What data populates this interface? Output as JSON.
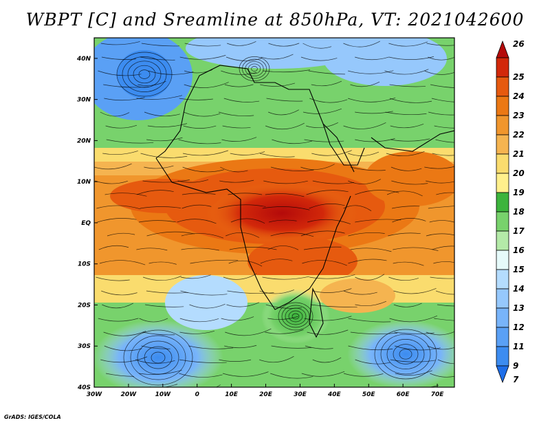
{
  "title": "WBPT [C] and Sreamline at 850hPa, VT: 2021042600",
  "footer": "GrADS: IGES/COLA",
  "map": {
    "lon_range": [
      -30,
      75
    ],
    "lat_range": [
      -40,
      45
    ],
    "lon_ticks": [
      "30W",
      "20W",
      "10W",
      "0",
      "10E",
      "20E",
      "30E",
      "40E",
      "50E",
      "60E",
      "70E"
    ],
    "lat_ticks": [
      "40N",
      "30N",
      "20N",
      "10N",
      "EQ",
      "10S",
      "20S",
      "30S",
      "40S"
    ]
  },
  "colorbar": {
    "levels": [
      "7",
      "9",
      "11",
      "12",
      "13",
      "14",
      "15",
      "16",
      "17",
      "18",
      "19",
      "20",
      "21",
      "22",
      "23",
      "24",
      "25",
      "26"
    ],
    "colors": [
      "#1e6ee8",
      "#3c8cf0",
      "#5aa0f5",
      "#78b4fa",
      "#96c8fc",
      "#b4dcfe",
      "#e6fafa",
      "#b4eaa8",
      "#78d26c",
      "#3cb43c",
      "#fff08c",
      "#fadc6e",
      "#f5b450",
      "#f0962d",
      "#eb7814",
      "#e65a0f",
      "#d2280a",
      "#b40a0a"
    ]
  }
}
